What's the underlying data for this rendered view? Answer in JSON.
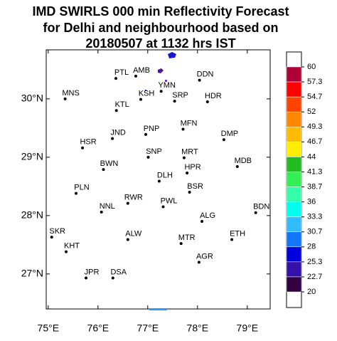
{
  "chart_data": {
    "type": "map",
    "title": "IMD SWIRLS 000 min Reflectivity Forecast",
    "subtitle": "for Delhi and neighbourhood based on",
    "subtitle2": "20180507 at 1132 hrs IST",
    "xlim": [
      74.96,
      79.46
    ],
    "ylim": [
      26.4,
      30.84
    ],
    "xticks": [
      {
        "value": 75,
        "label": "75°E"
      },
      {
        "value": 76,
        "label": "76°E"
      },
      {
        "value": 77,
        "label": "77°E"
      },
      {
        "value": 78,
        "label": "78°E"
      },
      {
        "value": 79,
        "label": "79°E"
      }
    ],
    "yticks": [
      {
        "value": 27,
        "label": "27°N"
      },
      {
        "value": 28,
        "label": "28°N"
      },
      {
        "value": 29,
        "label": "29°N"
      },
      {
        "value": 30,
        "label": "30°N"
      }
    ],
    "stations": [
      {
        "name": "PTL",
        "lon": 76.36,
        "lat": 30.35
      },
      {
        "name": "AMB",
        "lon": 76.76,
        "lat": 30.39
      },
      {
        "name": "DDN",
        "lon": 78.04,
        "lat": 30.32
      },
      {
        "name": "YMN",
        "lon": 77.27,
        "lat": 30.13
      },
      {
        "name": "KSH",
        "lon": 76.86,
        "lat": 29.99
      },
      {
        "name": "SRP",
        "lon": 77.54,
        "lat": 29.96
      },
      {
        "name": "HDR",
        "lon": 78.2,
        "lat": 29.95
      },
      {
        "name": "MNS",
        "lon": 75.34,
        "lat": 30.0
      },
      {
        "name": "KTL",
        "lon": 76.37,
        "lat": 29.8
      },
      {
        "name": "JND",
        "lon": 76.29,
        "lat": 29.32
      },
      {
        "name": "PNP",
        "lon": 76.96,
        "lat": 29.39
      },
      {
        "name": "MFN",
        "lon": 77.71,
        "lat": 29.48
      },
      {
        "name": "DMP",
        "lon": 78.53,
        "lat": 29.3
      },
      {
        "name": "HSR",
        "lon": 75.69,
        "lat": 29.16
      },
      {
        "name": "SNP",
        "lon": 77.01,
        "lat": 29.0
      },
      {
        "name": "MRT",
        "lon": 77.73,
        "lat": 28.99
      },
      {
        "name": "MDB",
        "lon": 78.8,
        "lat": 28.84
      },
      {
        "name": "BWN",
        "lon": 76.11,
        "lat": 28.79
      },
      {
        "name": "HPR",
        "lon": 77.79,
        "lat": 28.73
      },
      {
        "name": "DLH",
        "lon": 77.23,
        "lat": 28.59
      },
      {
        "name": "BSR",
        "lon": 77.84,
        "lat": 28.4
      },
      {
        "name": "PLN",
        "lon": 75.56,
        "lat": 28.38
      },
      {
        "name": "RWR",
        "lon": 76.6,
        "lat": 28.21
      },
      {
        "name": "PWL",
        "lon": 77.31,
        "lat": 28.15
      },
      {
        "name": "NNL",
        "lon": 76.07,
        "lat": 28.06
      },
      {
        "name": "BDN",
        "lon": 79.17,
        "lat": 28.05
      },
      {
        "name": "ALG",
        "lon": 78.09,
        "lat": 27.9
      },
      {
        "name": "SKR",
        "lon": 75.07,
        "lat": 27.63
      },
      {
        "name": "ALW",
        "lon": 76.6,
        "lat": 27.59
      },
      {
        "name": "MTR",
        "lon": 77.67,
        "lat": 27.52
      },
      {
        "name": "ETH",
        "lon": 78.69,
        "lat": 27.59
      },
      {
        "name": "KHT",
        "lon": 75.36,
        "lat": 27.38
      },
      {
        "name": "AGR",
        "lon": 78.03,
        "lat": 27.2
      },
      {
        "name": "JPR",
        "lon": 75.76,
        "lat": 26.93
      },
      {
        "name": "DSA",
        "lon": 76.3,
        "lat": 26.93
      }
    ],
    "colorbar": {
      "ticks": [
        60,
        57.3,
        54.7,
        52,
        49.3,
        46.7,
        44,
        41.3,
        38.7,
        36,
        33.3,
        30.7,
        28,
        25.3,
        22.7,
        20
      ],
      "colors": [
        "#b0003a",
        "#ff0000",
        "#ff4400",
        "#ff8800",
        "#ffbb00",
        "#ffee00",
        "#22bb22",
        "#33ee55",
        "#33ffaa",
        "#00ffee",
        "#33bbff",
        "#1177ff",
        "#0000dd",
        "#3311aa",
        "#330044"
      ]
    }
  }
}
